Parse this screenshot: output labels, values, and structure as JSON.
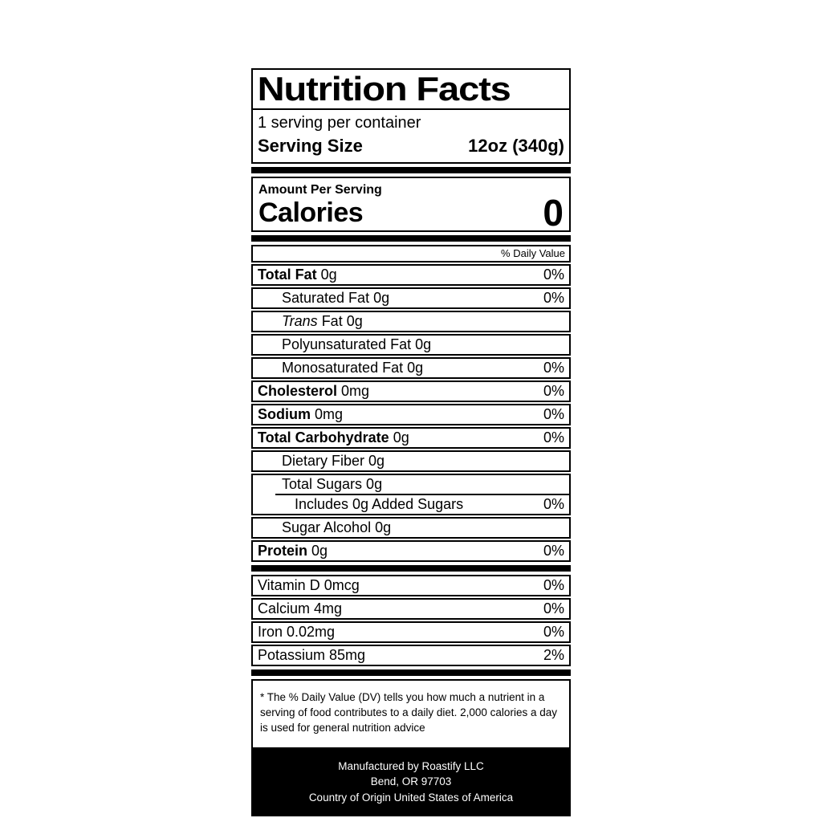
{
  "colors": {
    "ink": "#000000",
    "paper": "#ffffff"
  },
  "label": {
    "title": "Nutrition Facts",
    "servings_per_container": "1 serving per container",
    "serving_size_label": "Serving Size",
    "serving_size_value": "12oz (340g)",
    "amount_per_serving": "Amount Per Serving",
    "calories_label": "Calories",
    "calories_value": "0",
    "daily_value_header": "% Daily Value",
    "nutrients": [
      {
        "bold": "Total Fat",
        "italic": "",
        "text": " 0g",
        "percent": "0%"
      },
      {
        "bold": "",
        "italic": "",
        "text": "Saturated Fat 0g",
        "percent": "0%"
      },
      {
        "bold": "",
        "italic": "Trans",
        "text": " Fat 0g",
        "percent": ""
      },
      {
        "bold": "",
        "italic": "",
        "text": "Polyunsaturated Fat 0g",
        "percent": ""
      },
      {
        "bold": "",
        "italic": "",
        "text": "Monosaturated Fat 0g",
        "percent": "0%"
      },
      {
        "bold": "Cholesterol",
        "italic": "",
        "text": " 0mg",
        "percent": "0%"
      },
      {
        "bold": "Sodium",
        "italic": "",
        "text": " 0mg",
        "percent": "0%"
      },
      {
        "bold": "Total Carbohydrate",
        "italic": "",
        "text": " 0g",
        "percent": "0%"
      },
      {
        "bold": "",
        "italic": "",
        "text": "Dietary Fiber 0g",
        "percent": ""
      },
      {
        "bold": "",
        "italic": "",
        "text": "Total Sugars 0g",
        "percent": ""
      },
      {
        "bold": "",
        "italic": "",
        "text": "Includes 0g Added Sugars",
        "percent": "0%"
      },
      {
        "bold": "",
        "italic": "",
        "text": "Sugar Alcohol 0g",
        "percent": ""
      },
      {
        "bold": "Protein",
        "italic": "",
        "text": " 0g",
        "percent": "0%"
      }
    ],
    "vitamins": [
      {
        "text": "Vitamin D 0mcg",
        "percent": "0%"
      },
      {
        "text": "Calcium 4mg",
        "percent": "0%"
      },
      {
        "text": "Iron 0.02mg",
        "percent": "0%"
      },
      {
        "text": "Potassium 85mg",
        "percent": "2%"
      }
    ],
    "footnote": "* The % Daily Value (DV) tells you how much a nutrient in a serving of food contributes to a daily diet. 2,000 calories a day is used for general nutrition advice",
    "manufacturer": {
      "line1": "Manufactured by Roastify LLC",
      "line2": "Bend, OR 97703",
      "line3": "Country of Origin United States of America"
    }
  }
}
